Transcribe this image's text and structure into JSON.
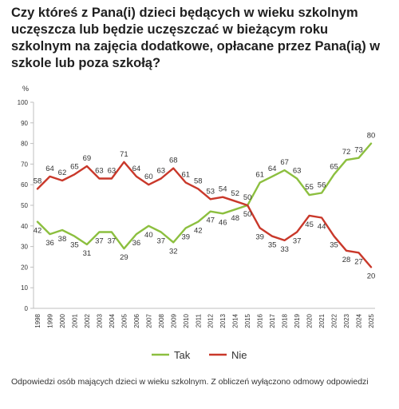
{
  "title": "Czy któreś z Pana(i) dzieci będących w wieku szkolnym uczęszcza lub będzie uczęszczać w bieżącym roku szkolnym na zajęcia dodatkowe, opłacane przez Pana(ią) w szkole lub poza szkołą?",
  "footnote": "Odpowiedzi osób mających dzieci w wieku szkolnym. Z obliczeń wyłączono odmowy odpowiedzi",
  "chart_data": {
    "type": "line",
    "ylabel": "%",
    "ylim": [
      0,
      100
    ],
    "yticks": [
      0,
      10,
      20,
      30,
      40,
      50,
      60,
      70,
      80,
      90,
      100
    ],
    "x": [
      "1998",
      "1999",
      "2000",
      "2001",
      "2002",
      "2003",
      "2004",
      "2005",
      "2006",
      "2007",
      "2008",
      "2009",
      "2010",
      "2011",
      "2012",
      "2013",
      "2014",
      "2015",
      "2016",
      "2017",
      "2018",
      "2019",
      "2020",
      "2021",
      "2022",
      "2023",
      "2024",
      "2025"
    ],
    "series": [
      {
        "name": "Tak",
        "color": "#8cbf3f",
        "values": [
          42,
          36,
          38,
          35,
          31,
          37,
          37,
          29,
          36,
          40,
          37,
          32,
          39,
          42,
          47,
          46,
          48,
          50,
          61,
          64,
          67,
          63,
          55,
          56,
          65,
          72,
          73,
          80
        ]
      },
      {
        "name": "Nie",
        "color": "#c9382a",
        "values": [
          58,
          64,
          62,
          65,
          69,
          63,
          63,
          71,
          64,
          60,
          63,
          68,
          61,
          58,
          53,
          54,
          52,
          50,
          39,
          35,
          33,
          37,
          45,
          44,
          35,
          28,
          27,
          20
        ]
      }
    ],
    "legend_position": "bottom",
    "grid": false
  }
}
